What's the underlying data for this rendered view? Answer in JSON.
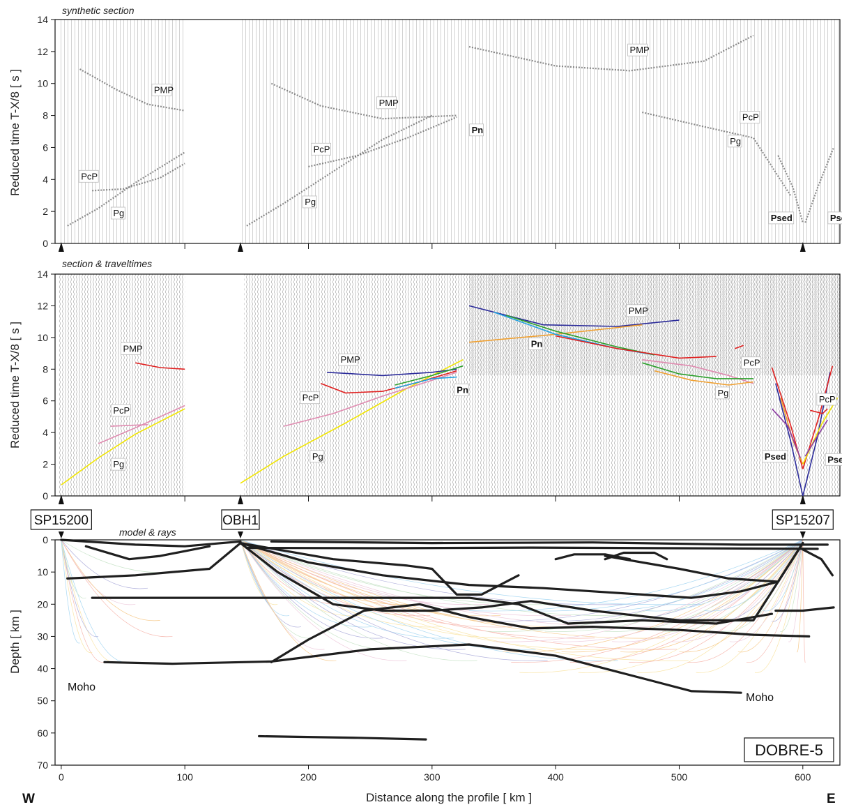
{
  "chart_data": [
    {
      "type": "line",
      "panel": "synthetic",
      "title": "synthetic section",
      "ylabel": "Reduced  time  T-X/8   [ s ]",
      "xlim": [
        -5,
        630
      ],
      "ylim": [
        0,
        14
      ],
      "y_ticks": [
        "0",
        "2",
        "4",
        "6",
        "8",
        "10",
        "12",
        "14"
      ],
      "shots": [
        0,
        145,
        600
      ],
      "phase_labels": [
        {
          "text": "PcP",
          "x": 16,
          "y": 4.0
        },
        {
          "text": "Pg",
          "x": 42,
          "y": 1.7
        },
        {
          "text": "PMP",
          "x": 75,
          "y": 9.4
        },
        {
          "text": "PcP",
          "x": 204,
          "y": 5.7
        },
        {
          "text": "Pg",
          "x": 197,
          "y": 2.4
        },
        {
          "text": "PMP",
          "x": 257,
          "y": 8.6
        },
        {
          "text": "Pn",
          "x": 332,
          "y": 6.9
        },
        {
          "text": "PMP",
          "x": 460,
          "y": 11.9
        },
        {
          "text": "PcP",
          "x": 551,
          "y": 7.7
        },
        {
          "text": "Pg",
          "x": 541,
          "y": 6.2
        },
        {
          "text": "Psed",
          "x": 574,
          "y": 1.4
        },
        {
          "text": "Psed",
          "x": 622,
          "y": 1.4
        }
      ],
      "series": [
        {
          "phase": "Pg",
          "color": "#666666",
          "x": [
            5,
            30,
            60,
            100
          ],
          "y": [
            1.1,
            2.2,
            3.8,
            5.7
          ]
        },
        {
          "phase": "PcP",
          "color": "#666666",
          "x": [
            25,
            50,
            80,
            100
          ],
          "y": [
            3.3,
            3.4,
            4.1,
            5.0
          ]
        },
        {
          "phase": "PMP",
          "color": "#666666",
          "x": [
            15,
            45,
            70,
            100
          ],
          "y": [
            10.9,
            9.6,
            8.7,
            8.3
          ]
        },
        {
          "phase": "Pg",
          "color": "#666666",
          "x": [
            150,
            180,
            220,
            260,
            300
          ],
          "y": [
            1.1,
            2.5,
            4.5,
            6.5,
            8.0
          ]
        },
        {
          "phase": "PcP",
          "color": "#666666",
          "x": [
            200,
            240,
            280,
            320
          ],
          "y": [
            4.8,
            5.5,
            6.6,
            7.9
          ]
        },
        {
          "phase": "PMP",
          "color": "#666666",
          "x": [
            170,
            210,
            260,
            320
          ],
          "y": [
            10.0,
            8.6,
            7.8,
            8.0
          ]
        },
        {
          "phase": "PMP",
          "color": "#666666",
          "x": [
            330,
            400,
            460,
            520,
            560
          ],
          "y": [
            12.3,
            11.1,
            10.8,
            11.4,
            13.0
          ]
        },
        {
          "phase": "Pg",
          "color": "#666666",
          "x": [
            470,
            520,
            560,
            590
          ],
          "y": [
            8.2,
            7.3,
            6.6,
            3.0
          ]
        },
        {
          "phase": "Psed",
          "color": "#666666",
          "x": [
            580,
            592,
            600
          ],
          "y": [
            5.5,
            3.5,
            1.3
          ]
        },
        {
          "phase": "Psed",
          "color": "#666666",
          "x": [
            602,
            612,
            625
          ],
          "y": [
            1.3,
            3.5,
            6.0
          ]
        }
      ]
    },
    {
      "type": "line",
      "panel": "observed",
      "title": "section & traveltimes",
      "ylabel": "Reduced  time  T-X/8   [ s ]",
      "xlim": [
        -5,
        630
      ],
      "ylim": [
        0,
        14
      ],
      "y_ticks": [
        "0",
        "2",
        "4",
        "6",
        "8",
        "10",
        "12",
        "14"
      ],
      "shots": [
        0,
        145,
        600
      ],
      "phase_labels": [
        {
          "text": "PMP",
          "x": 50,
          "y": 9.1
        },
        {
          "text": "PcP",
          "x": 42,
          "y": 5.2
        },
        {
          "text": "Pg",
          "x": 42,
          "y": 1.8
        },
        {
          "text": "PMP",
          "x": 226,
          "y": 8.4
        },
        {
          "text": "PcP",
          "x": 195,
          "y": 6.0
        },
        {
          "text": "Pg",
          "x": 203,
          "y": 2.3
        },
        {
          "text": "Pn",
          "x": 320,
          "y": 6.5
        },
        {
          "text": "Pn",
          "x": 380,
          "y": 9.4
        },
        {
          "text": "PMP",
          "x": 459,
          "y": 11.5
        },
        {
          "text": "PcP",
          "x": 552,
          "y": 8.2
        },
        {
          "text": "Pg",
          "x": 531,
          "y": 6.3
        },
        {
          "text": "PcP",
          "x": 613,
          "y": 5.9
        },
        {
          "text": "Psed",
          "x": 569,
          "y": 2.3
        },
        {
          "text": "Psed",
          "x": 620,
          "y": 2.1
        }
      ],
      "series": [
        {
          "phase": "Pg",
          "color": "#f2e600",
          "x": [
            0,
            30,
            60,
            100
          ],
          "y": [
            0.7,
            2.4,
            3.9,
            5.5
          ]
        },
        {
          "phase": "PcP",
          "color": "#e08ab0",
          "x": [
            30,
            60,
            100
          ],
          "y": [
            3.3,
            4.3,
            5.7
          ]
        },
        {
          "phase": "PcP",
          "color": "#e08ab0",
          "x": [
            40,
            70
          ],
          "y": [
            4.4,
            4.5
          ]
        },
        {
          "phase": "PMP",
          "color": "#e02020",
          "x": [
            60,
            80,
            100
          ],
          "y": [
            8.4,
            8.1,
            8.0
          ]
        },
        {
          "phase": "Pg",
          "color": "#f2e600",
          "x": [
            145,
            180,
            230,
            280,
            325
          ],
          "y": [
            0.8,
            2.5,
            4.6,
            6.8,
            8.6
          ]
        },
        {
          "phase": "PcP",
          "color": "#e08ab0",
          "x": [
            180,
            220,
            260,
            300,
            320
          ],
          "y": [
            4.4,
            5.2,
            6.3,
            7.3,
            7.8
          ]
        },
        {
          "phase": "PMP",
          "color": "#e02020",
          "x": [
            210,
            230,
            260,
            290,
            320
          ],
          "y": [
            7.1,
            6.5,
            6.6,
            7.2,
            7.9
          ]
        },
        {
          "phase": "PMP",
          "color": "#2b2b9a",
          "x": [
            215,
            260,
            300,
            320
          ],
          "y": [
            7.8,
            7.6,
            7.8,
            8.0
          ]
        },
        {
          "phase": "Pn",
          "color": "#1fa0e0",
          "x": [
            270,
            300,
            320
          ],
          "y": [
            6.8,
            7.4,
            7.5
          ]
        },
        {
          "phase": "Pn",
          "color": "#2ca02c",
          "x": [
            270,
            300,
            325
          ],
          "y": [
            7.0,
            7.6,
            8.2
          ]
        },
        {
          "phase": "PMP",
          "color": "#2b2b9a",
          "x": [
            330,
            390,
            450,
            500
          ],
          "y": [
            12.0,
            10.8,
            10.7,
            11.1
          ]
        },
        {
          "phase": "Pn",
          "color": "#f0a030",
          "x": [
            330,
            400,
            470
          ],
          "y": [
            9.7,
            10.2,
            10.8
          ]
        },
        {
          "phase": "PMP",
          "color": "#1fa0e0",
          "x": [
            350,
            400,
            450,
            480
          ],
          "y": [
            11.6,
            10.2,
            9.3,
            8.9
          ]
        },
        {
          "phase": "PMP",
          "color": "#2ca02c",
          "x": [
            360,
            400,
            450,
            480
          ],
          "y": [
            11.4,
            10.4,
            9.4,
            8.9
          ]
        },
        {
          "phase": "PMP",
          "color": "#e02020",
          "x": [
            400,
            450,
            500,
            530
          ],
          "y": [
            10.1,
            9.3,
            8.7,
            8.8
          ]
        },
        {
          "phase": "PcP",
          "color": "#e08ab0",
          "x": [
            470,
            510,
            540,
            560
          ],
          "y": [
            8.6,
            8.2,
            7.6,
            7.1
          ]
        },
        {
          "phase": "Pg",
          "color": "#f0a030",
          "x": [
            480,
            510,
            540,
            560
          ],
          "y": [
            7.9,
            7.3,
            7.0,
            7.2
          ]
        },
        {
          "phase": "Pg",
          "color": "#2ca02c",
          "x": [
            470,
            500,
            530,
            560
          ],
          "y": [
            8.4,
            7.7,
            7.4,
            7.4
          ]
        },
        {
          "phase": "PMP",
          "color": "#e02020",
          "x": [
            545,
            552
          ],
          "y": [
            9.3,
            9.5
          ]
        },
        {
          "phase": "Psed",
          "color": "#2b2b9a",
          "x": [
            578,
            590,
            600
          ],
          "y": [
            7.1,
            3.5,
            0.0
          ]
        },
        {
          "phase": "Psed",
          "color": "#e02020",
          "x": [
            575,
            590,
            600
          ],
          "y": [
            8.1,
            4.5,
            1.7
          ]
        },
        {
          "phase": "Psed",
          "color": "#f0a030",
          "x": [
            582,
            592,
            600
          ],
          "y": [
            6.2,
            3.5,
            2.0
          ]
        },
        {
          "phase": "Psed",
          "color": "#8a3aa0",
          "x": [
            575,
            588,
            598
          ],
          "y": [
            5.5,
            4.4,
            2.4
          ]
        },
        {
          "phase": "Psed",
          "color": "#2b2b9a",
          "x": [
            600,
            612,
            622
          ],
          "y": [
            0.0,
            3.8,
            7.8
          ]
        },
        {
          "phase": "Psed",
          "color": "#e02020",
          "x": [
            600,
            613,
            624
          ],
          "y": [
            1.7,
            5.0,
            8.2
          ]
        },
        {
          "phase": "Psed",
          "color": "#f2e600",
          "x": [
            600,
            615,
            628
          ],
          "y": [
            2.0,
            4.5,
            6.2
          ]
        },
        {
          "phase": "Psed",
          "color": "#8a3aa0",
          "x": [
            602,
            612,
            620
          ],
          "y": [
            2.5,
            3.8,
            4.8
          ]
        },
        {
          "phase": "PcP",
          "color": "#e02020",
          "x": [
            606,
            616,
            620
          ],
          "y": [
            5.4,
            5.2,
            5.5
          ]
        }
      ]
    },
    {
      "type": "line",
      "panel": "model",
      "title": "model & rays",
      "xlabel": "Distance along the profile   [ km ]",
      "ylabel": "Depth   [ km ]",
      "xlim": [
        -5,
        630
      ],
      "ylim": [
        70,
        0
      ],
      "x_ticks": [
        "0",
        "100",
        "200",
        "300",
        "400",
        "500",
        "600"
      ],
      "y_ticks": [
        "0",
        "10",
        "20",
        "30",
        "40",
        "50",
        "60",
        "70"
      ],
      "labels": {
        "west": "W",
        "east": "E",
        "moho_w": "Moho",
        "moho_e": "Moho",
        "profile": "DOBRE-5"
      },
      "shot_points": [
        {
          "name": "SP15200",
          "x": 0
        },
        {
          "name": "OBH1",
          "x": 145
        },
        {
          "name": "SP15207",
          "x": 600
        }
      ],
      "boundaries": [
        {
          "x": [
            35,
            90,
            170,
            250,
            330,
            400,
            450,
            480,
            510,
            550
          ],
          "y": [
            38,
            38.5,
            37.8,
            34,
            32.5,
            36,
            41,
            44,
            47,
            47.5
          ]
        },
        {
          "x": [
            170,
            200,
            245,
            290,
            330,
            380,
            430,
            500,
            560,
            605
          ],
          "y": [
            38,
            31,
            22,
            20,
            24,
            27.5,
            27,
            28,
            29.5,
            30
          ]
        },
        {
          "x": [
            25,
            100,
            200,
            290,
            330,
            370,
            410,
            470,
            530,
            575
          ],
          "y": [
            18,
            18,
            18,
            18,
            18,
            20,
            26,
            25,
            26,
            23
          ]
        },
        {
          "x": [
            5,
            60,
            120,
            145
          ],
          "y": [
            12,
            11,
            9,
            1
          ]
        },
        {
          "x": [
            145,
            175,
            220,
            260,
            300,
            340,
            380,
            430,
            500,
            560,
            600
          ],
          "y": [
            1,
            10,
            20,
            22,
            22,
            21,
            19,
            22,
            25,
            25,
            1
          ]
        },
        {
          "x": [
            145,
            200,
            260,
            330,
            390,
            430,
            470,
            510,
            550,
            580,
            600
          ],
          "y": [
            1,
            7,
            11,
            14,
            15,
            16,
            17,
            18,
            16,
            13,
            1
          ]
        },
        {
          "x": [
            145,
            220,
            280,
            300,
            320,
            340,
            370
          ],
          "y": [
            1,
            6,
            8,
            9,
            17,
            17,
            11
          ]
        },
        {
          "x": [
            440,
            500,
            540,
            580,
            600
          ],
          "y": [
            5,
            9,
            12,
            13,
            1
          ]
        },
        {
          "x": [
            0,
            60,
            100,
            145
          ],
          "y": [
            0,
            1.5,
            2,
            0.5
          ]
        },
        {
          "x": [
            170,
            300,
            430,
            550,
            620
          ],
          "y": [
            0.5,
            1,
            0.8,
            1.5,
            1.5
          ]
        },
        {
          "x": [
            150,
            260,
            380,
            500,
            612
          ],
          "y": [
            2.5,
            2.6,
            2.4,
            2.6,
            2.8
          ]
        },
        {
          "x": [
            20,
            55,
            80,
            120
          ],
          "y": [
            2,
            6,
            5,
            2
          ]
        },
        {
          "x": [
            600,
            615,
            624
          ],
          "y": [
            3,
            6,
            11
          ]
        },
        {
          "x": [
            578,
            600,
            625
          ],
          "y": [
            22,
            22,
            21
          ]
        },
        {
          "x": [
            160,
            240,
            295
          ],
          "y": [
            61,
            61.5,
            62
          ]
        },
        {
          "x": [
            400,
            415,
            440,
            460
          ],
          "y": [
            6,
            4.5,
            4.5,
            6
          ]
        },
        {
          "x": [
            440,
            455,
            480,
            490
          ],
          "y": [
            6,
            4,
            4,
            6
          ]
        }
      ]
    }
  ]
}
